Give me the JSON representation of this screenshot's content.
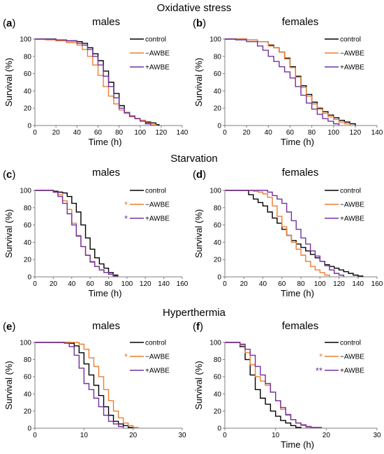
{
  "sections": [
    {
      "title": "Oxidative stress"
    },
    {
      "title": "Starvation"
    },
    {
      "title": "Hyperthermia"
    }
  ],
  "colors": {
    "control": "#000000",
    "minus": "#ED7D31",
    "plus": "#7030A0"
  },
  "chart_data": [
    {
      "type": "line",
      "letter": "a",
      "sex": "males",
      "xlabel": "Time (h)",
      "ylabel": "Survival (%)",
      "xlim": [
        0,
        140
      ],
      "xticks": [
        0,
        20,
        40,
        60,
        80,
        100,
        120,
        140
      ],
      "ylim": [
        0,
        100
      ],
      "yticks": [
        0,
        20,
        40,
        60,
        80,
        100
      ],
      "grid": false,
      "legend_position": "top-right",
      "series": [
        {
          "name": "control",
          "color": "#000000",
          "asterisk": "",
          "x": [
            0,
            10,
            20,
            30,
            40,
            45,
            50,
            55,
            60,
            65,
            70,
            75,
            80,
            85,
            90,
            95,
            100,
            105,
            110,
            115,
            118
          ],
          "y": [
            100,
            100,
            99,
            98,
            97,
            95,
            90,
            83,
            75,
            63,
            50,
            37,
            23,
            15,
            11,
            8,
            6,
            4,
            3,
            1,
            0
          ]
        },
        {
          "name": "−AWBE",
          "color": "#ED7D31",
          "asterisk": "",
          "x": [
            0,
            10,
            20,
            30,
            40,
            45,
            50,
            55,
            60,
            65,
            70,
            75,
            80,
            85,
            90,
            95,
            100,
            105,
            110,
            115
          ],
          "y": [
            100,
            99,
            98,
            96,
            93,
            88,
            80,
            70,
            58,
            45,
            34,
            25,
            18,
            14,
            10,
            8,
            6,
            3,
            1,
            0
          ]
        },
        {
          "name": "+AWBE",
          "color": "#7030A0",
          "asterisk": "",
          "x": [
            0,
            10,
            20,
            30,
            40,
            45,
            50,
            55,
            60,
            65,
            70,
            75,
            80,
            85,
            90,
            95,
            100,
            105,
            110
          ],
          "y": [
            100,
            100,
            99,
            98,
            95,
            93,
            88,
            80,
            70,
            57,
            45,
            32,
            20,
            15,
            11,
            8,
            5,
            2,
            0
          ]
        }
      ]
    },
    {
      "type": "line",
      "letter": "b",
      "sex": "females",
      "xlabel": "Time (h)",
      "ylabel": "Survival (%)",
      "xlim": [
        0,
        140
      ],
      "xticks": [
        0,
        20,
        40,
        60,
        80,
        100,
        120,
        140
      ],
      "ylim": [
        0,
        100
      ],
      "yticks": [
        0,
        20,
        40,
        60,
        80,
        100
      ],
      "grid": false,
      "legend_position": "top-right",
      "series": [
        {
          "name": "control",
          "color": "#000000",
          "asterisk": "",
          "x": [
            0,
            10,
            20,
            30,
            40,
            45,
            50,
            55,
            60,
            65,
            70,
            75,
            80,
            85,
            90,
            95,
            100,
            105,
            110,
            115,
            120
          ],
          "y": [
            100,
            100,
            99,
            97,
            93,
            90,
            85,
            78,
            68,
            57,
            46,
            36,
            27,
            20,
            16,
            12,
            9,
            6,
            4,
            2,
            0
          ]
        },
        {
          "name": "−AWBE",
          "color": "#ED7D31",
          "asterisk": "",
          "x": [
            0,
            10,
            20,
            30,
            40,
            45,
            50,
            55,
            60,
            65,
            70,
            75,
            80,
            85,
            90,
            95,
            100,
            105,
            110,
            115
          ],
          "y": [
            100,
            100,
            99,
            97,
            92,
            90,
            85,
            77,
            67,
            56,
            44,
            34,
            25,
            19,
            14,
            10,
            7,
            4,
            2,
            0
          ]
        },
        {
          "name": "+AWBE",
          "color": "#7030A0",
          "asterisk": "",
          "x": [
            0,
            10,
            20,
            30,
            35,
            40,
            45,
            50,
            55,
            60,
            65,
            70,
            75,
            80,
            85,
            90,
            95,
            100,
            105
          ],
          "y": [
            100,
            99,
            97,
            92,
            87,
            80,
            74,
            68,
            62,
            55,
            45,
            35,
            26,
            19,
            13,
            8,
            5,
            2,
            0
          ]
        }
      ]
    },
    {
      "type": "line",
      "letter": "c",
      "sex": "males",
      "xlabel": "Time (h)",
      "ylabel": "Survival (%)",
      "xlim": [
        0,
        160
      ],
      "xticks": [
        0,
        20,
        40,
        60,
        80,
        100,
        120,
        140,
        160
      ],
      "ylim": [
        0,
        100
      ],
      "yticks": [
        0,
        20,
        40,
        60,
        80,
        100
      ],
      "grid": false,
      "legend_position": "top-right",
      "series": [
        {
          "name": "control",
          "color": "#000000",
          "asterisk": "",
          "x": [
            0,
            15,
            20,
            25,
            30,
            35,
            40,
            45,
            50,
            55,
            60,
            65,
            70,
            75,
            80,
            85,
            90
          ],
          "y": [
            100,
            100,
            99,
            98,
            97,
            93,
            85,
            75,
            60,
            45,
            32,
            22,
            15,
            10,
            5,
            2,
            0
          ]
        },
        {
          "name": "−AWBE",
          "color": "#ED7D31",
          "asterisk": "*",
          "x": [
            0,
            15,
            20,
            25,
            30,
            35,
            40,
            45,
            50,
            55,
            60,
            65,
            70,
            75,
            80,
            85,
            88
          ],
          "y": [
            100,
            100,
            98,
            95,
            88,
            78,
            62,
            48,
            35,
            25,
            18,
            12,
            8,
            5,
            3,
            1,
            0
          ]
        },
        {
          "name": "+AWBE",
          "color": "#7030A0",
          "asterisk": "*",
          "x": [
            0,
            15,
            20,
            25,
            30,
            35,
            40,
            45,
            50,
            55,
            60,
            65,
            70,
            75,
            80,
            85,
            90
          ],
          "y": [
            100,
            100,
            98,
            93,
            85,
            73,
            60,
            47,
            35,
            25,
            17,
            12,
            8,
            5,
            3,
            1,
            0
          ]
        }
      ]
    },
    {
      "type": "line",
      "letter": "d",
      "sex": "females",
      "xlabel": "Time (h)",
      "ylabel": "Survival (%)",
      "xlim": [
        0,
        160
      ],
      "xticks": [
        0,
        20,
        40,
        60,
        80,
        100,
        120,
        140,
        160
      ],
      "ylim": [
        0,
        100
      ],
      "yticks": [
        0,
        20,
        40,
        60,
        80,
        100
      ],
      "grid": false,
      "legend_position": "top-right",
      "series": [
        {
          "name": "control",
          "color": "#000000",
          "asterisk": "",
          "x": [
            0,
            20,
            25,
            30,
            35,
            40,
            45,
            50,
            55,
            60,
            65,
            70,
            75,
            80,
            85,
            90,
            95,
            100,
            105,
            110,
            115,
            120,
            125,
            130,
            135,
            140,
            145
          ],
          "y": [
            100,
            100,
            95,
            90,
            86,
            82,
            75,
            68,
            62,
            55,
            48,
            42,
            38,
            34,
            30,
            26,
            22,
            18,
            14,
            12,
            10,
            8,
            6,
            4,
            2,
            1,
            0
          ]
        },
        {
          "name": "−AWBE",
          "color": "#ED7D31",
          "asterisk": "",
          "x": [
            0,
            20,
            30,
            35,
            40,
            45,
            50,
            55,
            60,
            65,
            70,
            75,
            80,
            85,
            90,
            95,
            100,
            105,
            110
          ],
          "y": [
            100,
            100,
            99,
            98,
            96,
            92,
            82,
            70,
            58,
            48,
            40,
            32,
            25,
            18,
            12,
            8,
            5,
            2,
            0
          ]
        },
        {
          "name": "+AWBE",
          "color": "#7030A0",
          "asterisk": "",
          "x": [
            0,
            20,
            30,
            40,
            45,
            50,
            55,
            60,
            65,
            70,
            75,
            80,
            85,
            90,
            95,
            100,
            105,
            110,
            115,
            120,
            125
          ],
          "y": [
            100,
            100,
            100,
            100,
            98,
            94,
            90,
            85,
            75,
            65,
            55,
            45,
            38,
            30,
            24,
            18,
            13,
            8,
            4,
            2,
            0
          ]
        }
      ]
    },
    {
      "type": "line",
      "letter": "e",
      "sex": "males",
      "xlabel": "",
      "ylabel": "Survival (%)",
      "xlim": [
        0,
        30
      ],
      "xticks": [
        0,
        10,
        20,
        30
      ],
      "ylim": [
        0,
        100
      ],
      "yticks": [
        0,
        20,
        40,
        60,
        80,
        100
      ],
      "grid": false,
      "legend_position": "top-right",
      "series": [
        {
          "name": "control",
          "color": "#000000",
          "asterisk": "",
          "x": [
            0,
            5,
            7,
            8,
            9,
            10,
            11,
            12,
            13,
            14,
            15,
            16,
            17,
            18,
            19,
            20
          ],
          "y": [
            100,
            100,
            99,
            96,
            88,
            75,
            62,
            50,
            38,
            25,
            15,
            8,
            5,
            3,
            1,
            0
          ]
        },
        {
          "name": "−AWBE",
          "color": "#ED7D31",
          "asterisk": "*",
          "x": [
            0,
            6,
            8,
            9,
            10,
            11,
            12,
            13,
            14,
            15,
            16,
            17,
            18,
            19,
            20,
            21
          ],
          "y": [
            100,
            100,
            100,
            98,
            92,
            82,
            72,
            60,
            45,
            32,
            20,
            12,
            6,
            3,
            1,
            0
          ]
        },
        {
          "name": "+AWBE",
          "color": "#7030A0",
          "asterisk": "",
          "x": [
            0,
            5,
            6,
            7,
            8,
            9,
            10,
            11,
            12,
            13,
            14,
            15,
            16,
            17,
            18
          ],
          "y": [
            100,
            100,
            99,
            95,
            85,
            70,
            52,
            45,
            35,
            25,
            15,
            8,
            5,
            2,
            0
          ]
        }
      ]
    },
    {
      "type": "line",
      "letter": "f",
      "sex": "females",
      "xlabel": "Time (h)",
      "ylabel": "Survival (%)",
      "xlim": [
        0,
        30
      ],
      "xticks": [
        0,
        10,
        20,
        30
      ],
      "ylim": [
        0,
        100
      ],
      "yticks": [
        0,
        20,
        40,
        60,
        80,
        100
      ],
      "grid": false,
      "legend_position": "top-right",
      "series": [
        {
          "name": "control",
          "color": "#000000",
          "asterisk": "",
          "x": [
            0,
            2,
            3,
            4,
            5,
            6,
            7,
            8,
            9,
            10,
            11,
            12,
            13,
            14,
            15
          ],
          "y": [
            100,
            100,
            95,
            80,
            62,
            45,
            35,
            28,
            20,
            14,
            9,
            6,
            3,
            1,
            0
          ]
        },
        {
          "name": "−AWBE",
          "color": "#ED7D31",
          "asterisk": "*",
          "x": [
            0,
            2,
            3,
            4,
            5,
            6,
            7,
            8,
            9,
            10,
            11,
            12,
            13,
            14,
            15,
            16,
            17
          ],
          "y": [
            100,
            100,
            97,
            88,
            74,
            60,
            55,
            50,
            42,
            32,
            22,
            15,
            10,
            6,
            3,
            1,
            0
          ]
        },
        {
          "name": "+AWBE",
          "color": "#7030A0",
          "asterisk": "**",
          "x": [
            0,
            2,
            3,
            4,
            5,
            6,
            7,
            8,
            9,
            10,
            11,
            12,
            13,
            14,
            15,
            16,
            17,
            18,
            19
          ],
          "y": [
            100,
            100,
            98,
            92,
            85,
            72,
            62,
            52,
            42,
            32,
            24,
            16,
            10,
            6,
            4,
            2,
            1,
            1,
            0
          ]
        }
      ]
    }
  ]
}
